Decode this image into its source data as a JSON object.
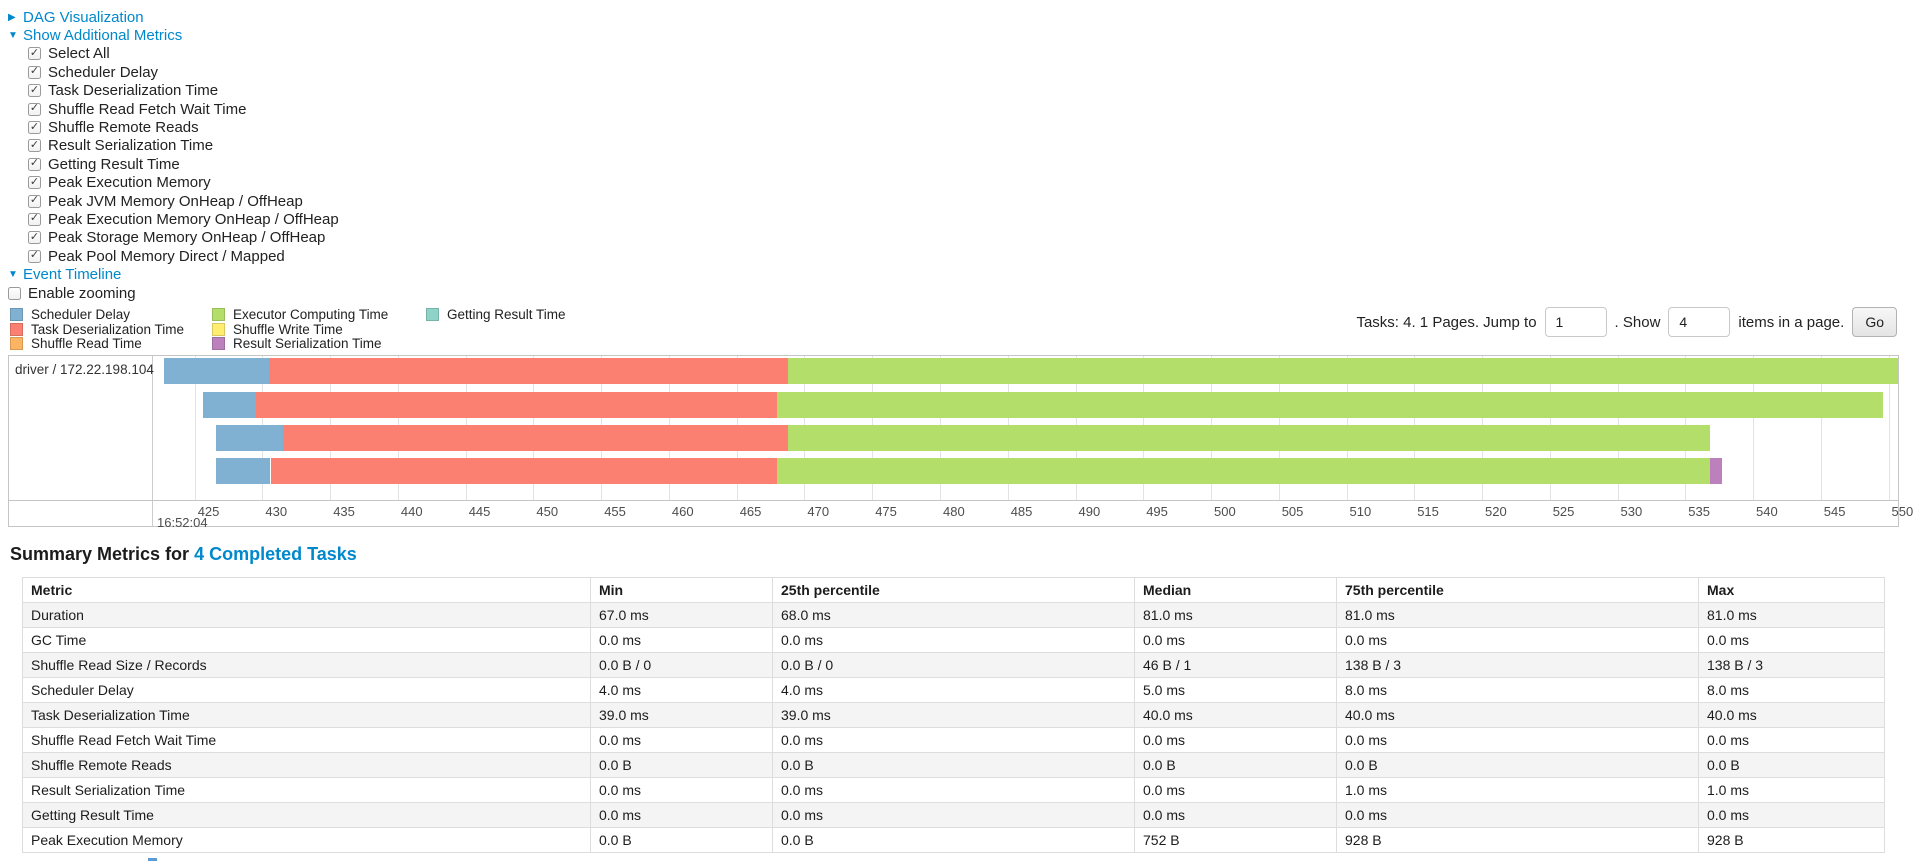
{
  "controls": {
    "dag": {
      "label": "DAG Visualization",
      "expanded": false
    },
    "metrics": {
      "label": "Show Additional Metrics",
      "expanded": true
    },
    "metric_checkboxes": [
      {
        "label": "Select All",
        "checked": true
      },
      {
        "label": "Scheduler Delay",
        "checked": true
      },
      {
        "label": "Task Deserialization Time",
        "checked": true
      },
      {
        "label": "Shuffle Read Fetch Wait Time",
        "checked": true
      },
      {
        "label": "Shuffle Remote Reads",
        "checked": true
      },
      {
        "label": "Result Serialization Time",
        "checked": true
      },
      {
        "label": "Getting Result Time",
        "checked": true
      },
      {
        "label": "Peak Execution Memory",
        "checked": true
      },
      {
        "label": "Peak JVM Memory OnHeap / OffHeap",
        "checked": true
      },
      {
        "label": "Peak Execution Memory OnHeap / OffHeap",
        "checked": true
      },
      {
        "label": "Peak Storage Memory OnHeap / OffHeap",
        "checked": true
      },
      {
        "label": "Peak Pool Memory Direct / Mapped",
        "checked": true
      }
    ],
    "event_timeline": {
      "label": "Event Timeline",
      "expanded": true
    },
    "enable_zooming": {
      "label": "Enable zooming",
      "checked": false
    }
  },
  "legend": {
    "columns": [
      [
        {
          "label": "Scheduler Delay",
          "color": "#80B1D3"
        },
        {
          "label": "Task Deserialization Time",
          "color": "#FB8072"
        },
        {
          "label": "Shuffle Read Time",
          "color": "#FDB462"
        }
      ],
      [
        {
          "label": "Executor Computing Time",
          "color": "#B3DE69"
        },
        {
          "label": "Shuffle Write Time",
          "color": "#FFED6F"
        },
        {
          "label": "Result Serialization Time",
          "color": "#BC80BD"
        }
      ],
      [
        {
          "label": "Getting Result Time",
          "color": "#8DD3C7"
        }
      ]
    ]
  },
  "pagination": {
    "tasks_text": "Tasks: 4. 1 Pages. Jump to",
    "jump_value": "1",
    "show_label": ". Show",
    "show_value": "4",
    "items_label": "items in a page.",
    "go_label": "Go"
  },
  "chart_data": {
    "type": "timeline",
    "group_label": "driver / 172.22.198.104",
    "axis": {
      "domain_min": 422,
      "domain_max": 550.7,
      "ticks": [
        425,
        430,
        435,
        440,
        445,
        450,
        455,
        460,
        465,
        470,
        475,
        480,
        485,
        490,
        495,
        500,
        505,
        510,
        515,
        520,
        525,
        530,
        535,
        540,
        545,
        550
      ],
      "major_label": "16:52:04"
    },
    "colors": {
      "scheduler-delay": "#80B1D3",
      "task-deserialization": "#FB8072",
      "shuffle-read": "#FDB462",
      "executor-computing": "#B3DE69",
      "shuffle-write": "#FFED6F",
      "result-serialization": "#BC80BD",
      "getting-result": "#8DD3C7"
    },
    "tasks": [
      {
        "segments": [
          {
            "name": "scheduler-delay",
            "start": 422.7,
            "end": 430.5
          },
          {
            "name": "task-deserialization",
            "start": 430.5,
            "end": 468.8
          },
          {
            "name": "executor-computing",
            "start": 468.8,
            "end": 550.7
          }
        ]
      },
      {
        "segments": [
          {
            "name": "scheduler-delay",
            "start": 425.6,
            "end": 429.5
          },
          {
            "name": "task-deserialization",
            "start": 429.5,
            "end": 468.0
          },
          {
            "name": "executor-computing",
            "start": 468.0,
            "end": 549.6
          }
        ]
      },
      {
        "segments": [
          {
            "name": "scheduler-delay",
            "start": 426.6,
            "end": 431.5
          },
          {
            "name": "task-deserialization",
            "start": 431.5,
            "end": 468.8
          },
          {
            "name": "executor-computing",
            "start": 468.8,
            "end": 536.8
          }
        ]
      },
      {
        "segments": [
          {
            "name": "scheduler-delay",
            "start": 426.6,
            "end": 430.6
          },
          {
            "name": "task-deserialization",
            "start": 430.6,
            "end": 468.0
          },
          {
            "name": "executor-computing",
            "start": 468.0,
            "end": 536.8
          },
          {
            "name": "result-serialization",
            "start": 536.8,
            "end": 537.7
          }
        ]
      }
    ]
  },
  "summary": {
    "heading_prefix": "Summary Metrics for ",
    "heading_link": "4 Completed Tasks"
  },
  "table": {
    "headers": [
      "Metric",
      "Min",
      "25th percentile",
      "Median",
      "75th percentile",
      "Max"
    ],
    "rows": [
      [
        "Duration",
        "67.0 ms",
        "68.0 ms",
        "81.0 ms",
        "81.0 ms",
        "81.0 ms"
      ],
      [
        "GC Time",
        "0.0 ms",
        "0.0 ms",
        "0.0 ms",
        "0.0 ms",
        "0.0 ms"
      ],
      [
        "Shuffle Read Size / Records",
        "0.0 B / 0",
        "0.0 B / 0",
        "46 B / 1",
        "138 B / 3",
        "138 B / 3"
      ],
      [
        "Scheduler Delay",
        "4.0 ms",
        "4.0 ms",
        "5.0 ms",
        "8.0 ms",
        "8.0 ms"
      ],
      [
        "Task Deserialization Time",
        "39.0 ms",
        "39.0 ms",
        "40.0 ms",
        "40.0 ms",
        "40.0 ms"
      ],
      [
        "Shuffle Read Fetch Wait Time",
        "0.0 ms",
        "0.0 ms",
        "0.0 ms",
        "0.0 ms",
        "0.0 ms"
      ],
      [
        "Shuffle Remote Reads",
        "0.0 B",
        "0.0 B",
        "0.0 B",
        "0.0 B",
        "0.0 B"
      ],
      [
        "Result Serialization Time",
        "0.0 ms",
        "0.0 ms",
        "0.0 ms",
        "1.0 ms",
        "1.0 ms"
      ],
      [
        "Getting Result Time",
        "0.0 ms",
        "0.0 ms",
        "0.0 ms",
        "0.0 ms",
        "0.0 ms"
      ],
      [
        "Peak Execution Memory",
        "0.0 B",
        "0.0 B",
        "752 B",
        "928 B",
        "928 B"
      ]
    ]
  }
}
